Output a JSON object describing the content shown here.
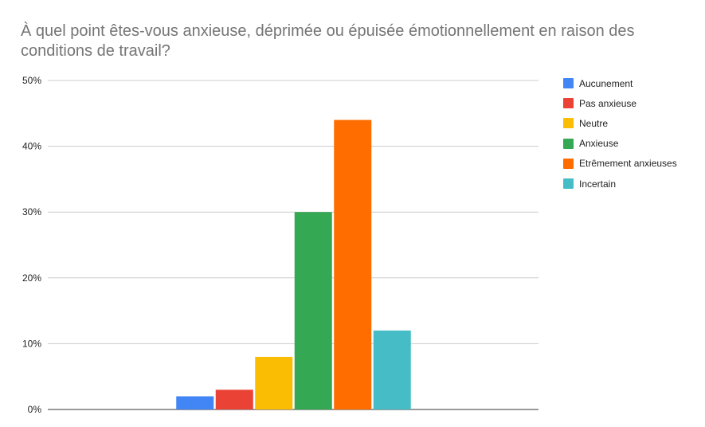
{
  "chart_data": {
    "type": "bar",
    "title": "À quel point êtes-vous anxieuse, déprimée ou épuisée émotionnellement en raison des conditions de travail?",
    "xlabel": "",
    "ylabel": "",
    "ylim": [
      0,
      50
    ],
    "yticks": [
      "0%",
      "10%",
      "20%",
      "30%",
      "40%",
      "50%"
    ],
    "grid": true,
    "legend_position": "right",
    "series": [
      {
        "name": "Aucunement",
        "value": 2,
        "color": "#4285f4"
      },
      {
        "name": "Pas anxieuse",
        "value": 3,
        "color": "#ea4335"
      },
      {
        "name": "Neutre",
        "value": 8,
        "color": "#fbbc04"
      },
      {
        "name": "Anxieuse",
        "value": 30,
        "color": "#34a853"
      },
      {
        "name": "Etrêmement anxieuses",
        "value": 44,
        "color": "#ff6d01"
      },
      {
        "name": "Incertain",
        "value": 12,
        "color": "#46bdc6"
      }
    ]
  }
}
